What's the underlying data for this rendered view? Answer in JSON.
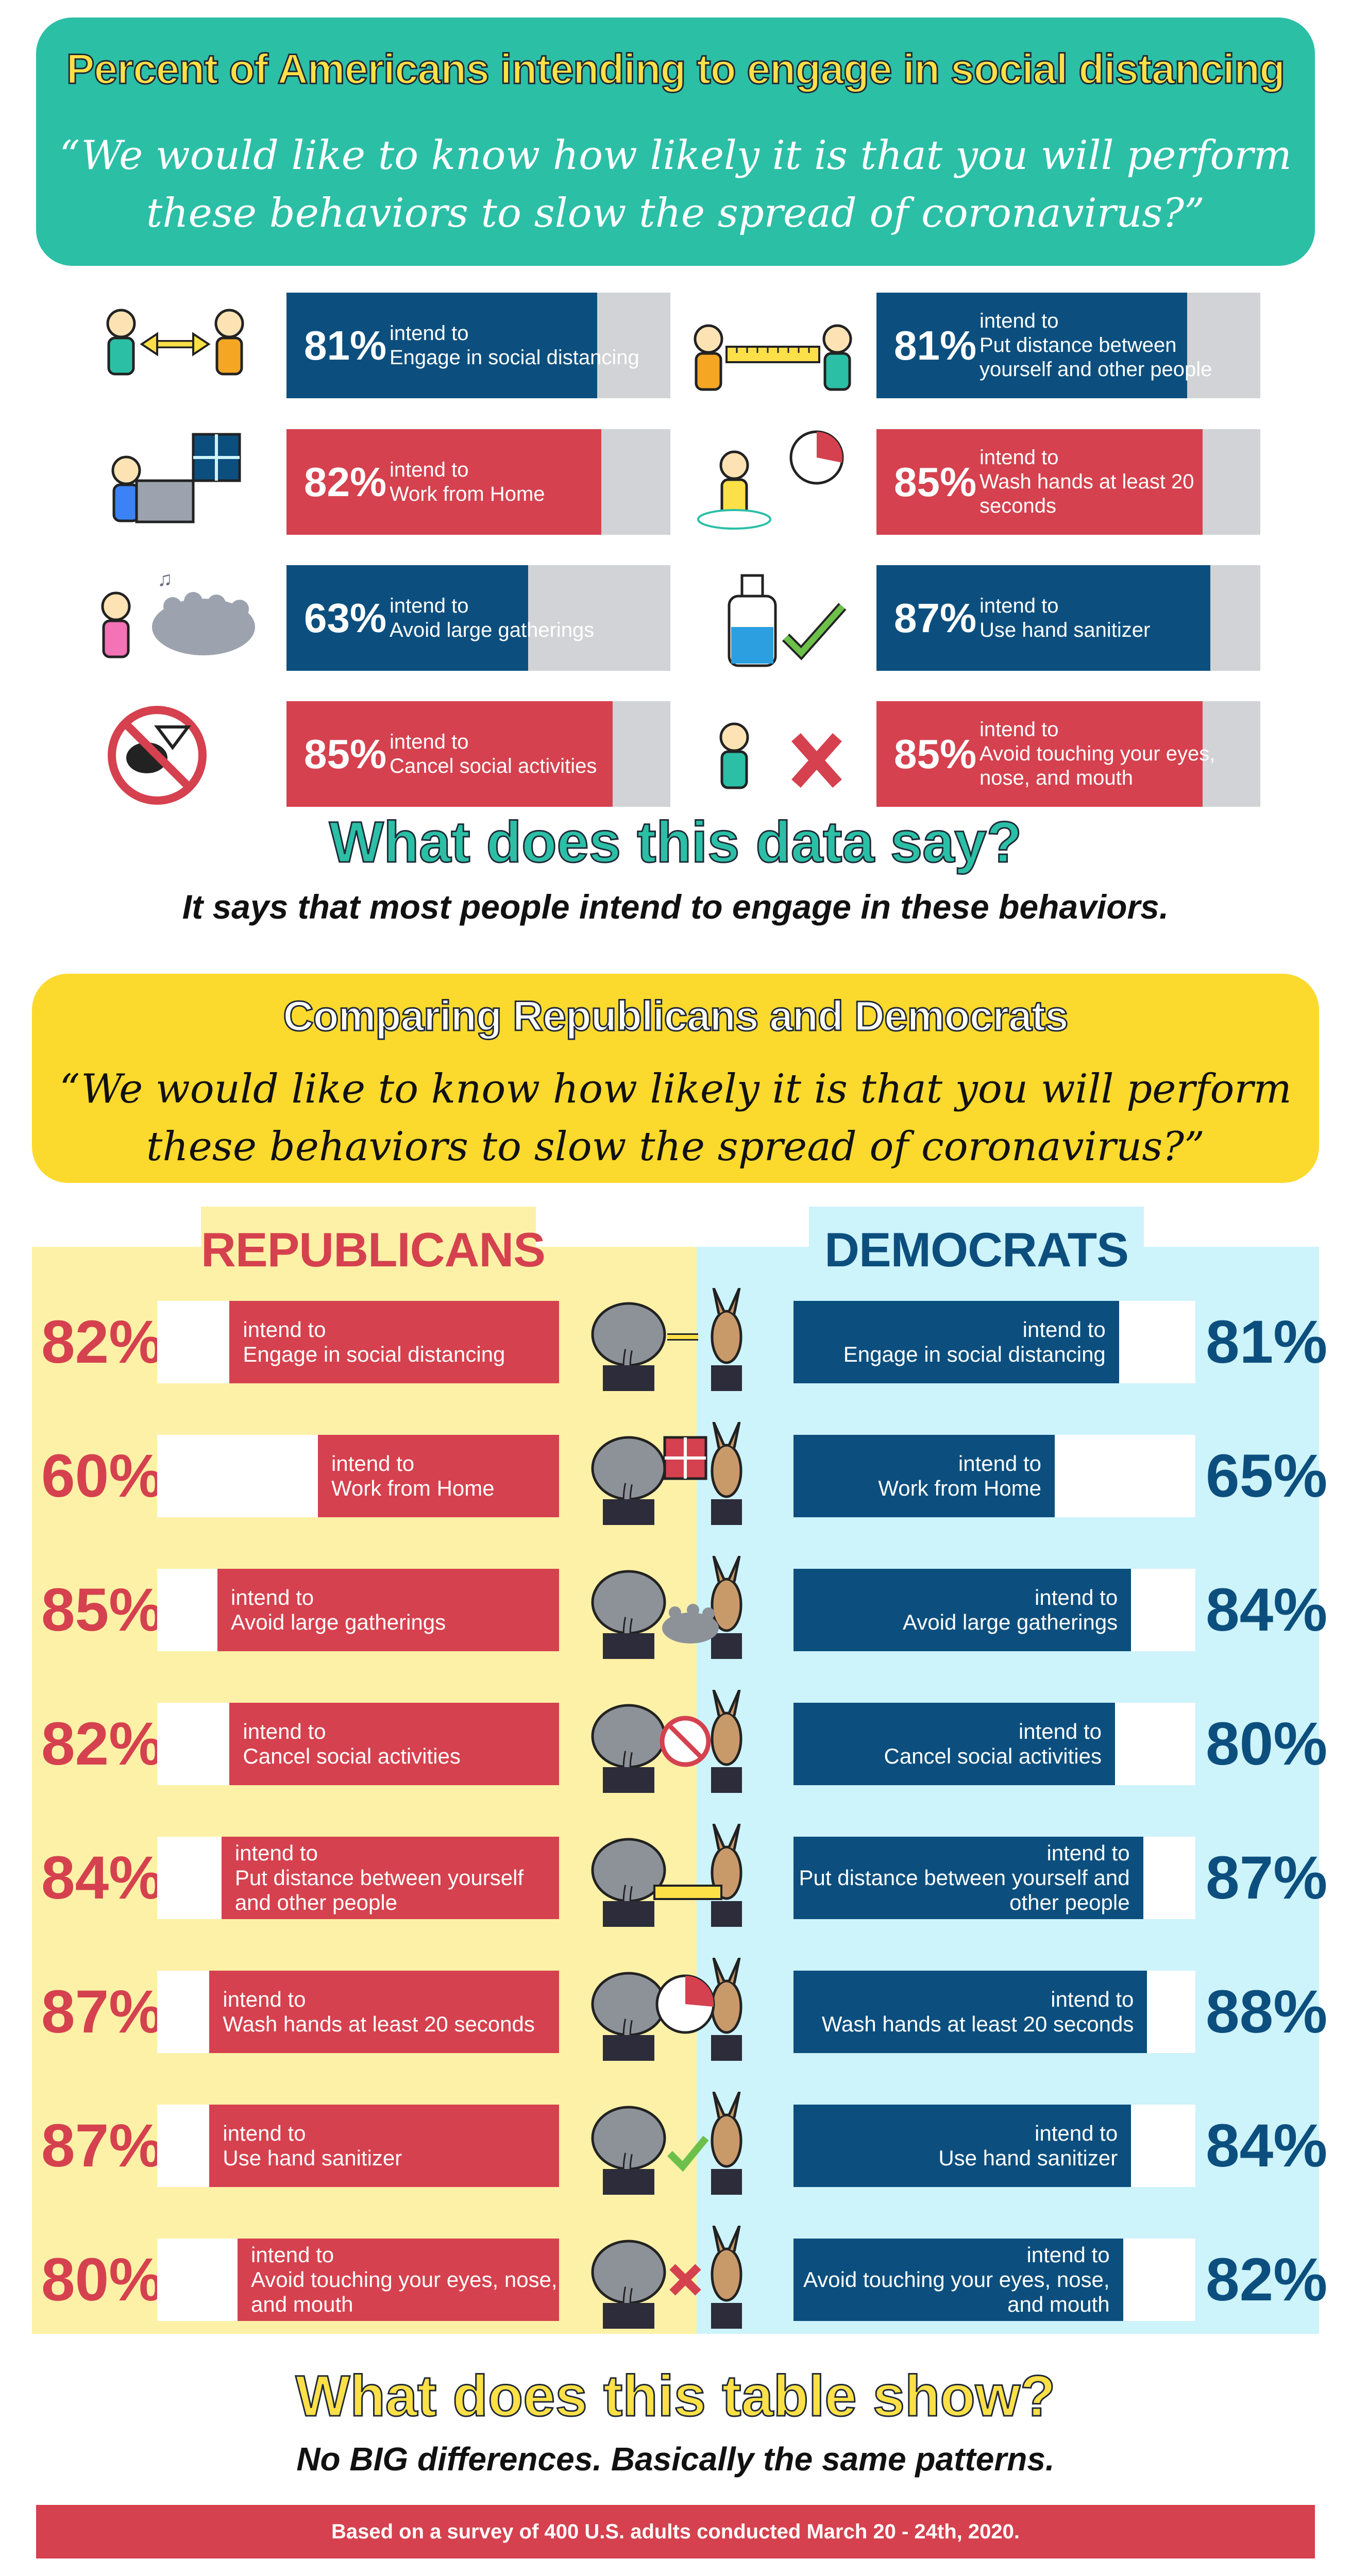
{
  "section1": {
    "title": "Percent of Americans intending to engage in social distancing",
    "quote_line1": "“We would like to know how likely it is that you will perform",
    "quote_line2": "these behaviors to slow the spread of coronavirus?”"
  },
  "chart_data": [
    {
      "type": "bar",
      "categories": [
        "Engage in social distancing",
        "Work from Home",
        "Avoid large gatherings",
        "Cancel social activities",
        "Put distance between yourself and other people",
        "Wash hands at least 20 seconds",
        "Use hand sanitizer",
        "Avoid touching your eyes, nose, and mouth"
      ],
      "values": [
        81,
        82,
        63,
        85,
        81,
        85,
        87,
        85
      ],
      "value_labels": [
        "81%",
        "82%",
        "63%",
        "85%",
        "81%",
        "85%",
        "87%",
        "85%"
      ],
      "prefix": "intend to",
      "colors": [
        "#0c4f7e",
        "#d5414e",
        "#0c4f7e",
        "#d5414e",
        "#0c4f7e",
        "#d5414e",
        "#0c4f7e",
        "#d5414e"
      ],
      "icons": [
        "two-people-arrow-icon",
        "work-from-home-icon",
        "crowd-icon",
        "no-party-icon",
        "ruler-distance-icon",
        "handwash-timer-icon",
        "hand-sanitizer-icon",
        "no-face-touch-icon"
      ],
      "ylim": [
        0,
        100
      ]
    },
    {
      "type": "bar",
      "categories": [
        "Engage in social distancing",
        "Work from Home",
        "Avoid large gatherings",
        "Cancel social activities",
        "Put distance between yourself and other people",
        "Wash hands at least 20 seconds",
        "Use hand sanitizer",
        "Avoid touching your eyes, nose, and mouth"
      ],
      "series": [
        {
          "name": "REPUBLICANS",
          "values": [
            82,
            60,
            85,
            82,
            84,
            87,
            87,
            80
          ],
          "labels": [
            "82%",
            "60%",
            "85%",
            "82%",
            "84%",
            "87%",
            "87%",
            "80%"
          ],
          "color": "#d5414e"
        },
        {
          "name": "DEMOCRATS",
          "values": [
            81,
            65,
            84,
            80,
            87,
            88,
            84,
            82
          ],
          "labels": [
            "81%",
            "65%",
            "84%",
            "80%",
            "87%",
            "88%",
            "84%",
            "82%"
          ],
          "color": "#0c4f7e"
        }
      ],
      "prefix": "intend to",
      "icons": [
        "arrow-icon",
        "window-icon",
        "crowd-icon",
        "no-party-icon",
        "ruler-icon",
        "timer-icon",
        "sanitizer-check-icon",
        "cross-icon"
      ],
      "ylim": [
        0,
        100
      ]
    }
  ],
  "takeaway1": {
    "title": "What does this data say?",
    "text": "It says that most people intend to engage in these behaviors."
  },
  "section2": {
    "title": "Comparing Republicans and Democrats",
    "quote_line1": "“We would like to know how likely it is that you will perform",
    "quote_line2": "these behaviors to slow the spread of coronavirus?”"
  },
  "takeaway2": {
    "title": "What does this table show?",
    "text": "No BIG differences. Basically the same patterns."
  },
  "footer": "Based on a survey of 400 U.S. adults conducted March 20 - 24th, 2020.",
  "colors": {
    "teal": "#2bbfa6",
    "yellow": "#fcd92d",
    "red": "#d5414e",
    "blue": "#0c4f7e"
  }
}
